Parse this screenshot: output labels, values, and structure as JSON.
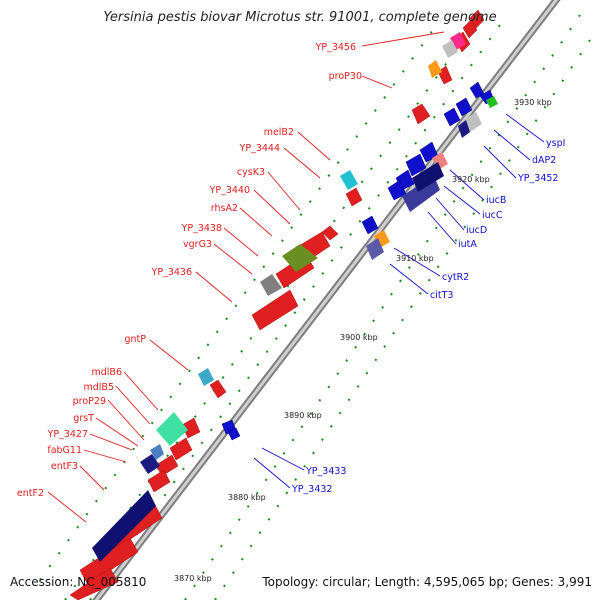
{
  "title": "Yersinia pestis biovar Microtus str. 91001, complete genome",
  "footer": {
    "accession": "Accession: NC_005810",
    "topology": "Topology: circular; Length: 4,595,065 bp; Genes: 3,991"
  },
  "colors": {
    "forward": "#e02020",
    "reverse": "#1010cc",
    "backbone": "#9a9a9a",
    "ticks": "#1a8a1a"
  },
  "ticks": [
    "3870 kbp",
    "3880 kbp",
    "3890 kbp",
    "3900 kbp",
    "3910 kbp",
    "3920 kbp",
    "3930 kbp"
  ],
  "forward_labels": [
    "YP_3456",
    "proP30",
    "melB2",
    "YP_3444",
    "cysK3",
    "YP_3440",
    "rhsA2",
    "YP_3438",
    "vgrG3",
    "YP_3436",
    "gntP",
    "mdlB6",
    "mdlB5",
    "proP29",
    "grsT",
    "YP_3427",
    "fabG11",
    "entF3",
    "entF2"
  ],
  "reverse_labels": [
    "yspI",
    "dAP2",
    "YP_3452",
    "iucB",
    "iucC",
    "iucD",
    "iutA",
    "cytR2",
    "citT3",
    "YP_3433",
    "YP_3432"
  ]
}
